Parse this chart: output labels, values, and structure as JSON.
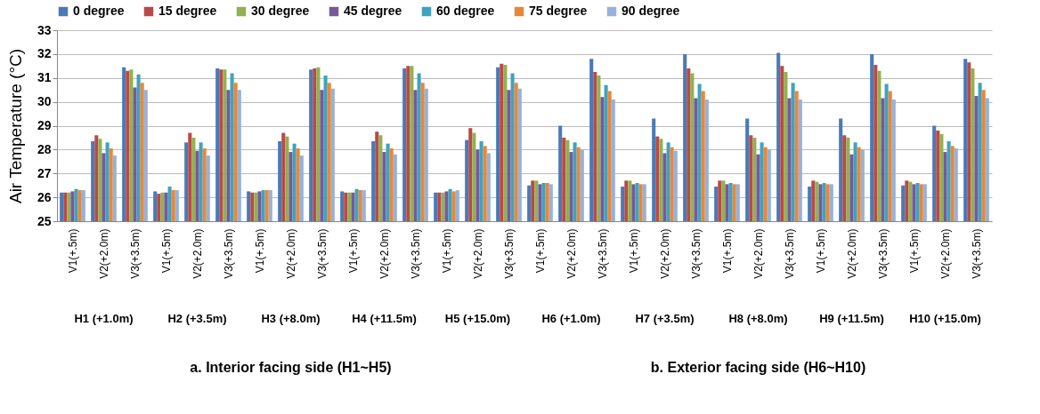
{
  "chart_data": {
    "type": "bar",
    "ylabel": "Air Temperature (°C)",
    "categories": [
      "V1(+.5m)",
      "V2(+2.0m)",
      "V3(+3.5m)",
      "V1(+.5m)",
      "V2(+2.0m)",
      "V3(+3.5m)",
      "V1(+.5m)",
      "V2(+2.0m)",
      "V3(+3.5m)",
      "V1(+.5m)",
      "V2(+2.0m)",
      "V3(+3.5m)",
      "V1(+.5m)",
      "V2(+2.0m)",
      "V3(+3.5m)",
      "V1(+.5m)",
      "V2(+2.0m)",
      "V3(+3.5m)",
      "V1(+.5m)",
      "V2(+2.0m)",
      "V3(+3.5m)",
      "V1(+.5m)",
      "V2(+2.0m)",
      "V3(+3.5m)",
      "V1(+.5m)",
      "V2(+2.0m)",
      "V3(+3.5m)",
      "V1(+.5m)",
      "V2(+2.0m)",
      "V3(+3.5m)"
    ],
    "series": [
      {
        "name": "0 degree",
        "color": "#4a7ab5",
        "values": [
          26.2,
          28.35,
          31.45,
          26.25,
          28.3,
          31.4,
          26.25,
          28.35,
          31.35,
          26.25,
          28.35,
          31.4,
          26.2,
          28.4,
          31.45,
          26.5,
          29.0,
          31.8,
          26.45,
          29.3,
          32.0,
          26.45,
          29.3,
          32.05,
          26.45,
          29.3,
          32.0,
          26.5,
          29.0,
          31.8
        ]
      },
      {
        "name": "15 degree",
        "color": "#b94a48",
        "values": [
          26.2,
          28.6,
          31.3,
          26.15,
          28.7,
          31.35,
          26.2,
          28.7,
          31.4,
          26.2,
          28.75,
          31.5,
          26.2,
          28.9,
          31.6,
          26.7,
          28.5,
          31.25,
          26.7,
          28.55,
          31.4,
          26.7,
          28.6,
          31.5,
          26.7,
          28.6,
          31.55,
          26.7,
          28.8,
          31.65
        ]
      },
      {
        "name": "30 degree",
        "color": "#93b050",
        "values": [
          26.2,
          28.45,
          31.35,
          26.2,
          28.5,
          31.35,
          26.2,
          28.55,
          31.45,
          26.2,
          28.6,
          31.5,
          26.2,
          28.7,
          31.55,
          26.7,
          28.4,
          31.1,
          26.7,
          28.45,
          31.2,
          26.7,
          28.5,
          31.25,
          26.65,
          28.5,
          31.3,
          26.65,
          28.65,
          31.4
        ]
      },
      {
        "name": "45 degree",
        "color": "#76599a",
        "values": [
          26.25,
          27.85,
          30.6,
          26.2,
          27.95,
          30.5,
          26.25,
          27.9,
          30.5,
          26.2,
          27.9,
          30.5,
          26.25,
          28.0,
          30.5,
          26.55,
          27.9,
          30.2,
          26.55,
          27.85,
          30.15,
          26.55,
          27.8,
          30.15,
          26.55,
          27.8,
          30.15,
          26.55,
          27.9,
          30.25
        ]
      },
      {
        "name": "60 degree",
        "color": "#3ea3bf",
        "values": [
          26.35,
          28.3,
          31.15,
          26.45,
          28.3,
          31.2,
          26.3,
          28.25,
          31.1,
          26.35,
          28.25,
          31.2,
          26.35,
          28.35,
          31.2,
          26.6,
          28.3,
          30.7,
          26.6,
          28.3,
          30.75,
          26.6,
          28.3,
          30.8,
          26.6,
          28.3,
          30.75,
          26.6,
          28.35,
          30.8
        ]
      },
      {
        "name": "75 degree",
        "color": "#e8873a",
        "values": [
          26.3,
          28.05,
          30.8,
          26.3,
          28.05,
          30.8,
          26.3,
          28.05,
          30.8,
          26.3,
          28.05,
          30.8,
          26.25,
          28.15,
          30.8,
          26.6,
          28.1,
          30.45,
          26.55,
          28.1,
          30.45,
          26.55,
          28.1,
          30.45,
          26.55,
          28.1,
          30.45,
          26.55,
          28.15,
          30.5
        ]
      },
      {
        "name": "90 degree",
        "color": "#97b2d9",
        "values": [
          26.3,
          27.75,
          30.5,
          26.3,
          27.75,
          30.5,
          26.3,
          27.75,
          30.55,
          26.3,
          27.8,
          30.55,
          26.3,
          27.85,
          30.55,
          26.55,
          28.0,
          30.1,
          26.55,
          27.95,
          30.1,
          26.55,
          28.0,
          30.1,
          26.55,
          28.0,
          30.1,
          26.55,
          28.05,
          30.15
        ]
      }
    ],
    "ylim": [
      25,
      33
    ],
    "yticks": [
      25,
      26,
      27,
      28,
      29,
      30,
      31,
      32,
      33
    ],
    "grid": "y",
    "legend": "top",
    "annotations": [
      "H1 (+1.0m)",
      "H2 (+3.5m)",
      "H3 (+8.0m)",
      "H4 (+11.5m)",
      "H5 (+15.0m)",
      "H6 (+1.0m)",
      "H7 (+3.5m)",
      "H8 (+8.0m)",
      "H9 (+11.5m)",
      "H10 (+15.0m)",
      "a. Interior facing side (H1~H5)",
      "b. Exterior facing side (H6~H10)"
    ]
  }
}
